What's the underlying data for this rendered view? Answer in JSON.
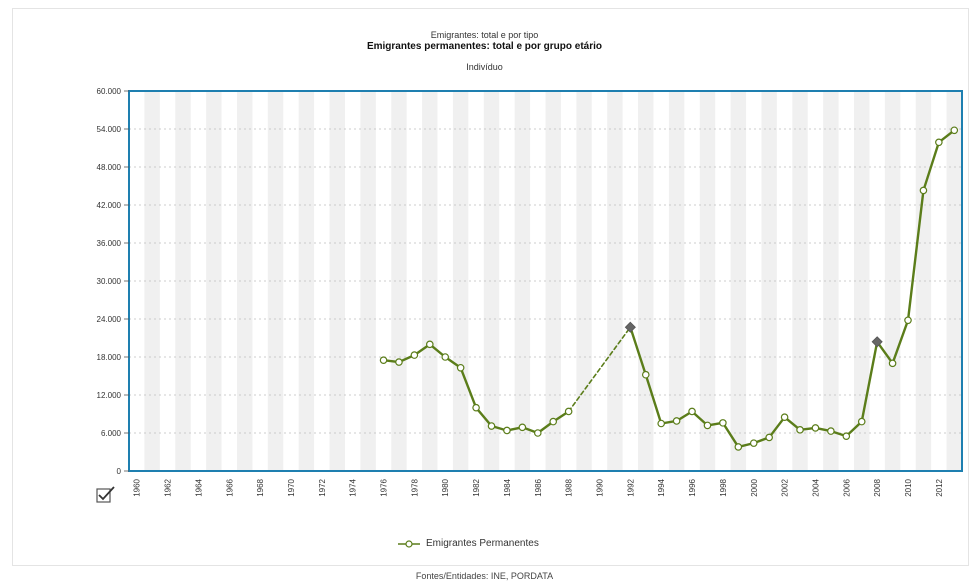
{
  "header": {
    "line1": "Emigrantes: total e por tipo",
    "line2": "Emigrantes permanentes: total e por grupo etário",
    "unit": "Indivíduo"
  },
  "legend": {
    "label": "Emigrantes Permanentes"
  },
  "footer": {
    "source": "Fontes/Entidades: INE, PORDATA"
  },
  "colors": {
    "line": "#5b7d1a",
    "axis": "#1e7fb0",
    "marker_special": "#666666"
  },
  "icons": {
    "checkbox": "checkbox-icon"
  },
  "chart_data": {
    "type": "line",
    "title": "Emigrantes permanentes: total e por grupo etário",
    "ylabel": "Indivíduo",
    "ylim": [
      0,
      60000
    ],
    "yticks": [
      0,
      6000,
      12000,
      18000,
      24000,
      30000,
      36000,
      42000,
      48000,
      54000,
      60000
    ],
    "ytick_labels": [
      "0",
      "6.000",
      "12.000",
      "18.000",
      "24.000",
      "30.000",
      "36.000",
      "42.000",
      "48.000",
      "54.000",
      "60.000"
    ],
    "xlim": [
      1960,
      2013
    ],
    "xtick_labels": [
      "1960",
      "1962",
      "1964",
      "1966",
      "1968",
      "1970",
      "1972",
      "1974",
      "1976",
      "1978",
      "1980",
      "1982",
      "1984",
      "1986",
      "1988",
      "1990",
      "1992",
      "1994",
      "1996",
      "1998",
      "2000",
      "2002",
      "2004",
      "2006",
      "2008",
      "2010",
      "2012"
    ],
    "grid": true,
    "legend_position": "bottom",
    "series": [
      {
        "name": "Emigrantes Permanentes",
        "x": [
          1976,
          1977,
          1978,
          1979,
          1980,
          1981,
          1982,
          1983,
          1984,
          1985,
          1986,
          1987,
          1988,
          1992,
          1993,
          1994,
          1995,
          1996,
          1997,
          1998,
          1999,
          2000,
          2001,
          2002,
          2003,
          2004,
          2005,
          2006,
          2007,
          2008,
          2009,
          2010,
          2011,
          2012,
          2013
        ],
        "y": [
          17500,
          17200,
          18300,
          20000,
          18000,
          16300,
          10000,
          7100,
          6400,
          6900,
          6000,
          7800,
          9400,
          22700,
          15200,
          7500,
          7900,
          9400,
          7200,
          7600,
          3800,
          4400,
          5300,
          8500,
          6500,
          6800,
          6300,
          5500,
          7800,
          20400,
          17000,
          23800,
          44300,
          51900,
          53800
        ],
        "dashed_segments": [
          [
            1988,
            1992
          ]
        ],
        "special_points": [
          1992,
          2008
        ]
      }
    ]
  }
}
